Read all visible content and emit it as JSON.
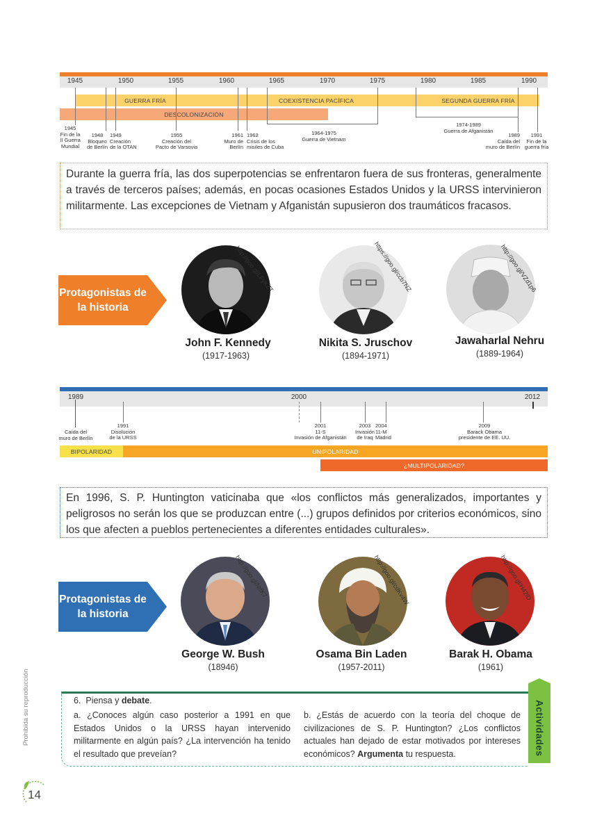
{
  "timeline1": {
    "years": [
      "1945",
      "1950",
      "1955",
      "1960",
      "1965",
      "1970",
      "1975",
      "1980",
      "1985",
      "1990"
    ],
    "periods": {
      "guerra_fria": "GUERRA FRÍA",
      "coexistencia": "COEXISTENCIA PACÍFICA",
      "segunda": "SEGUNDA GUERRA FRÍA",
      "descolonizacion": "DESCOLONIZACIÓN"
    },
    "events": {
      "e1945": "1945\nFin de la\nII Guerra\nMundial",
      "e1948": "1948\nBloqueo\nde Berlín",
      "e1949": "1949\nCreación\nde la OTAN",
      "e1955": "1955\nCreación del\nPacto de Varsovia",
      "e1961": "1961\nMuro de\nBerlín",
      "e1962": "1962\nCrisis de los\nmisiles de Cuba",
      "e1964": "1964-1975\nGuerra de Vietnam",
      "e1974": "1974-1989\nGuerra de Afganistán",
      "e1989": "1989\nCaída del\nmuro de Berlín",
      "e1991": "1991\nFin de la\nguerra fría"
    }
  },
  "quote1": "Durante la guerra fría, las dos superpotencias se enfrentaron fuera de sus fronteras, generalmente a través de terceros países; además, en pocas ocasiones Estados Unidos y la URSS intervinieron militarmente. Las excepciones de Vietnam y Afganistán supusieron dos traumáticos fracasos.",
  "protagonists1": {
    "tag": "Protagonistas de la historia",
    "people": [
      {
        "name": "John F. Kennedy",
        "dates": "(1917-1963)",
        "url": "http://goo.gl/LFyKZT"
      },
      {
        "name": "Nikita S. Jruschov",
        "dates": "(1894-1971)",
        "url": "https://goo.gl/ccb7NZ"
      },
      {
        "name": "Jawaharlal Nehru",
        "dates": "(1889-1964)",
        "url": "http://goo.gl/VZd1p6"
      }
    ]
  },
  "timeline2": {
    "years": [
      "1989",
      "2000",
      "2012"
    ],
    "events": {
      "e1989": "Caída del\nmuro de Berlín",
      "e1991": "1991\nDisolución\nde la URSS",
      "e2001": "2001\n11-S\nInvasión de Afganistán",
      "e2003": "2003\nInvasión\nde Iraq",
      "e2004": "2004\n11-M\nMadrid",
      "e2009": "2009\nBarack Obama\npresidente de EE. UU."
    },
    "periods": {
      "bipolaridad": "BIPOLARIDAD",
      "unipolaridad": "UNIPOLARIDAD",
      "multipolaridad": "¿MULTIPOLARIDAD?"
    }
  },
  "quote2": "En 1996, S. P. Huntington vaticinaba que «los conflictos más generalizados, importantes y peligrosos no serán los que se produzcan entre (...) grupos definidos por criterios económicos, sino los que afecten a pueblos pertenecientes a diferentes entidades culturales».",
  "protagonists2": {
    "tag": "Protagonistas de la historia",
    "people": [
      {
        "name": "George W. Bush",
        "dates": "(18946)",
        "url": "http://goo.gl/NtfK7"
      },
      {
        "name": "Osama Bin Laden",
        "dates": "(1957-2011)",
        "url": "http://goo.gl/cdKv4W"
      },
      {
        "name": "Barak H. Obama",
        "dates": "(1961)",
        "url": "http://goo.gl/H42lD"
      }
    ]
  },
  "activities": {
    "tab": "Actividades",
    "number": "6.",
    "prompt_pre": "Piensa y ",
    "prompt_bold": "debate",
    "prompt_post": ".",
    "a": "a. ¿Conoces algún caso posterior a 1991 en que Estados Unidos o la URSS hayan intervenido militarmente en algún país? ¿La intervención ha tenido el resultado que preveían?",
    "b_pre": "b. ¿Estás de acuerdo con la teoría del choque de civilizaciones de S. P. Huntington? ¿Los conflictos actuales han dejado de estar motivados por intereses económicos? ",
    "b_bold": "Argumenta",
    "b_post": " tu respuesta."
  },
  "footer": {
    "side_text": "Prohibida su reproducción",
    "page_number": "14"
  },
  "colors": {
    "orange": "#f07f2a",
    "blue": "#2f6fb3",
    "yellow": "#fcd36b",
    "amber": "#f6a623",
    "green": "#7cc142"
  }
}
